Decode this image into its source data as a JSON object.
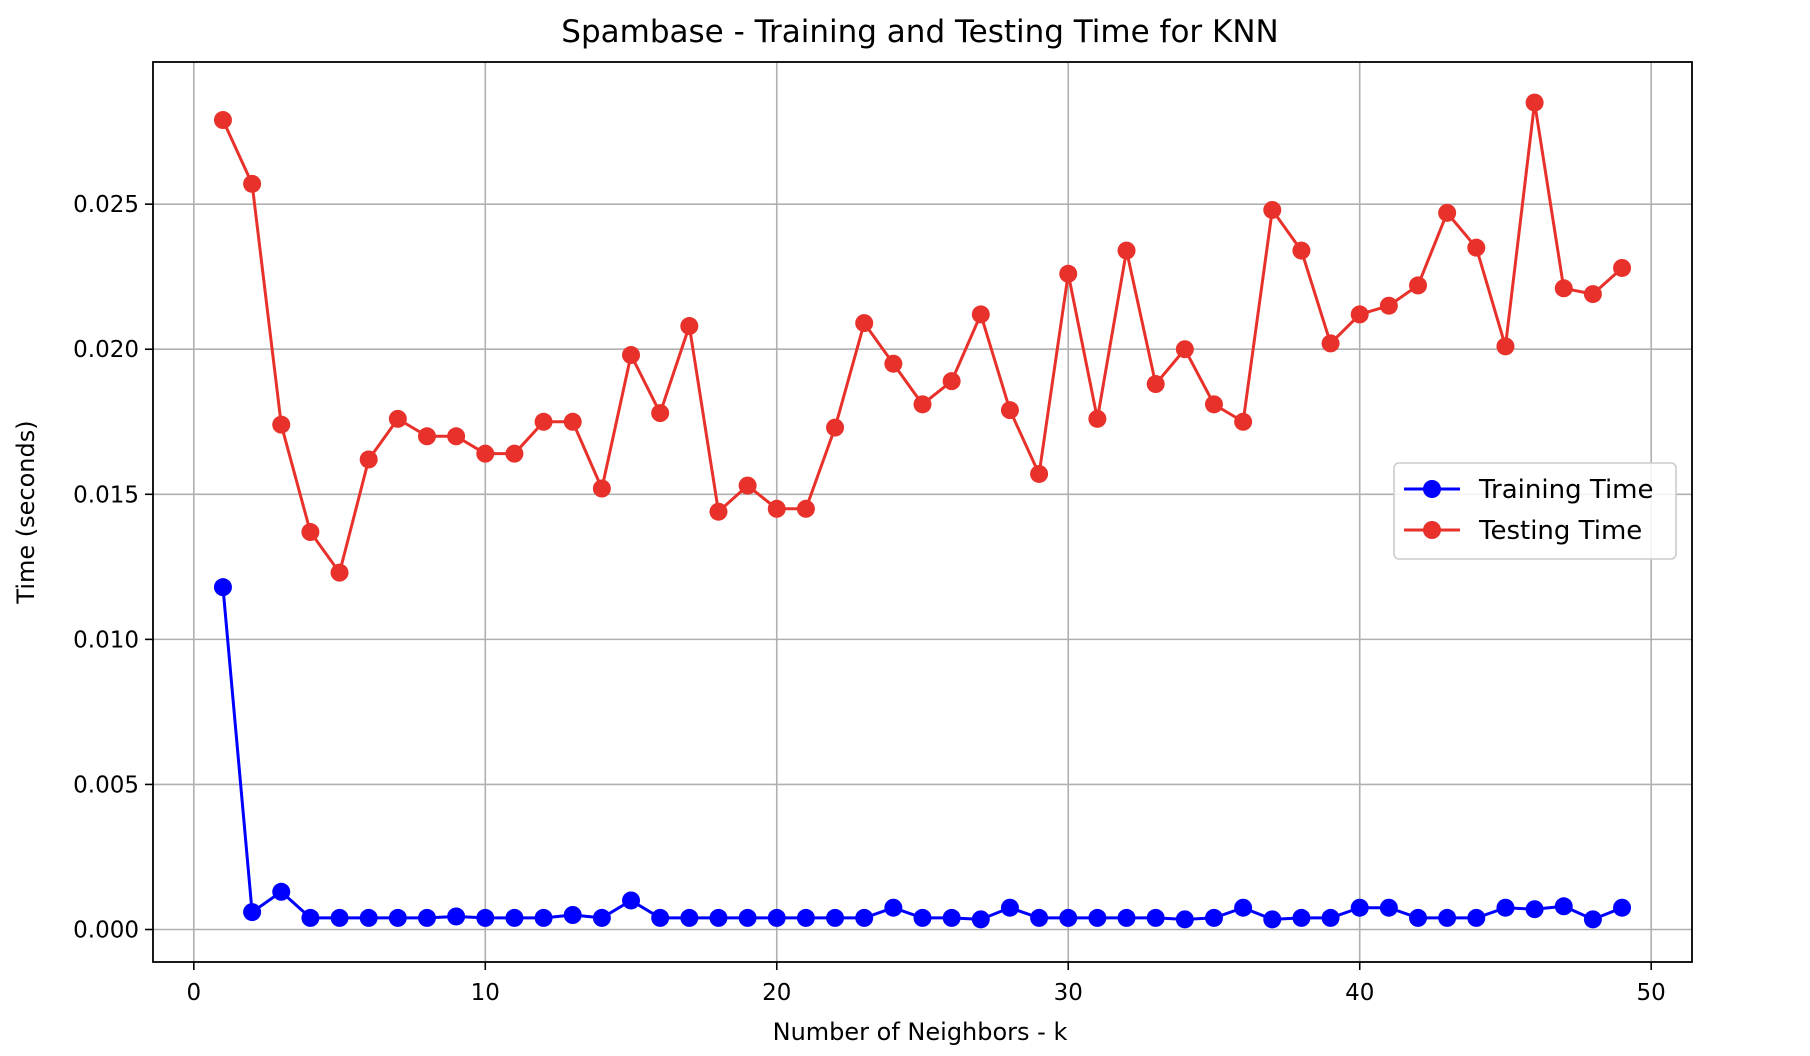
{
  "chart_data": {
    "type": "line",
    "title": "Spambase - Training and Testing Time for KNN",
    "xlabel": "Number of Neighbors - k",
    "ylabel": "Time (seconds)",
    "xlim": [
      -1.4,
      51.4
    ],
    "ylim": [
      -0.00112,
      0.0299
    ],
    "xticks": [
      0,
      10,
      20,
      30,
      40,
      50
    ],
    "xtick_labels": [
      "0",
      "10",
      "20",
      "30",
      "40",
      "50"
    ],
    "yticks": [
      0.0,
      0.005,
      0.01,
      0.015,
      0.02,
      0.025
    ],
    "ytick_labels": [
      "0.000",
      "0.005",
      "0.010",
      "0.015",
      "0.020",
      "0.025"
    ],
    "grid": true,
    "legend_position": "center-right",
    "x": [
      1,
      2,
      3,
      4,
      5,
      6,
      7,
      8,
      9,
      10,
      11,
      12,
      13,
      14,
      15,
      16,
      17,
      18,
      19,
      20,
      21,
      22,
      23,
      24,
      25,
      26,
      27,
      28,
      29,
      30,
      31,
      32,
      33,
      34,
      35,
      36,
      37,
      38,
      39,
      40,
      41,
      42,
      43,
      44,
      45,
      46,
      47,
      48,
      49
    ],
    "series": [
      {
        "name": "Training Time",
        "color": "#0000ff",
        "values": [
          0.0118,
          0.0006,
          0.0013,
          0.0004,
          0.0004,
          0.0004,
          0.0004,
          0.0004,
          0.00045,
          0.0004,
          0.0004,
          0.0004,
          0.0005,
          0.0004,
          0.001,
          0.0004,
          0.0004,
          0.0004,
          0.0004,
          0.0004,
          0.0004,
          0.0004,
          0.0004,
          0.00075,
          0.0004,
          0.0004,
          0.00035,
          0.00075,
          0.0004,
          0.0004,
          0.0004,
          0.0004,
          0.0004,
          0.00035,
          0.0004,
          0.00075,
          0.00035,
          0.0004,
          0.0004,
          0.00075,
          0.00075,
          0.0004,
          0.0004,
          0.0004,
          0.00075,
          0.0007,
          0.0008,
          0.00035,
          0.00075
        ]
      },
      {
        "name": "Testing Time",
        "color": "#e8312a",
        "values": [
          0.0279,
          0.0257,
          0.0174,
          0.0137,
          0.0123,
          0.0162,
          0.0176,
          0.017,
          0.017,
          0.0164,
          0.0164,
          0.0175,
          0.0175,
          0.0152,
          0.0198,
          0.0178,
          0.0208,
          0.0144,
          0.0153,
          0.0145,
          0.0145,
          0.0173,
          0.0209,
          0.0195,
          0.0181,
          0.0189,
          0.0212,
          0.0179,
          0.0157,
          0.0226,
          0.0176,
          0.0234,
          0.0188,
          0.02,
          0.0181,
          0.0175,
          0.0248,
          0.0234,
          0.0202,
          0.0212,
          0.0215,
          0.0222,
          0.0247,
          0.0235,
          0.0201,
          0.0285,
          0.0221,
          0.0219,
          0.0228
        ]
      }
    ]
  }
}
